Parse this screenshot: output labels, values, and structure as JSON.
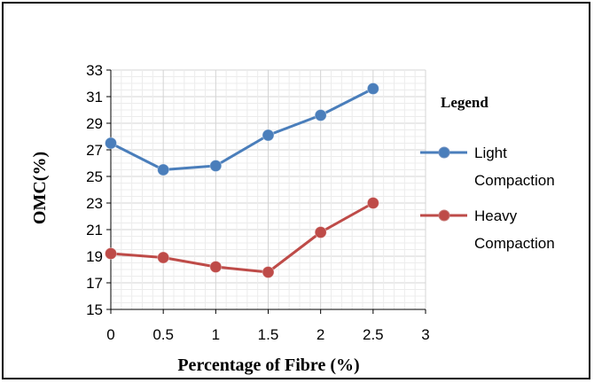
{
  "chart_data": {
    "type": "line",
    "title": "",
    "xlabel": "Percentage of Fibre (%)",
    "ylabel": "OMC(%)",
    "xlim": [
      0,
      3
    ],
    "ylim": [
      15,
      33
    ],
    "xticks": [
      "0",
      "0.5",
      "1",
      "1.5",
      "2",
      "2.5",
      "3"
    ],
    "yticks": [
      "15",
      "17",
      "19",
      "21",
      "23",
      "25",
      "27",
      "29",
      "31",
      "33"
    ],
    "grid": true,
    "legend": {
      "title": "Legend",
      "placement": "right",
      "entries": [
        {
          "lines": [
            "Light",
            "Compaction"
          ]
        },
        {
          "lines": [
            "Heavy",
            "Compaction"
          ]
        }
      ]
    },
    "x": [
      0,
      0.5,
      1,
      1.5,
      2,
      2.5
    ],
    "series": [
      {
        "name": "Light Compaction",
        "color": "#4a7ebb",
        "values": [
          27.5,
          25.5,
          25.8,
          28.1,
          29.6,
          31.6
        ]
      },
      {
        "name": "Heavy Compaction",
        "color": "#be4b48",
        "values": [
          19.2,
          18.9,
          18.2,
          17.8,
          20.8,
          23.0
        ]
      }
    ]
  }
}
